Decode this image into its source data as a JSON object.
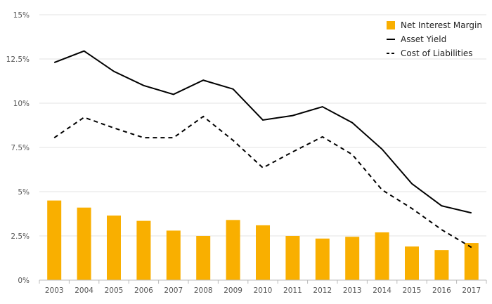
{
  "chart_data": {
    "type": "bar+line",
    "title": "",
    "xlabel": "",
    "ylabel": "",
    "ylim": [
      0,
      15
    ],
    "yticks": [
      0,
      2.5,
      5,
      7.5,
      10,
      12.5,
      15
    ],
    "ytick_labels": [
      "0%",
      "2.5%",
      "5%",
      "7.5%",
      "10%",
      "12.5%",
      "15%"
    ],
    "categories": [
      "2003",
      "2004",
      "2005",
      "2006",
      "2007",
      "2008",
      "2009",
      "2010",
      "2011",
      "2012",
      "2013",
      "2014",
      "2015",
      "2016",
      "2017"
    ],
    "grid": true,
    "legend_position": "top-right",
    "series": [
      {
        "name": "Net Interest Margin",
        "kind": "bar",
        "color": "#F9AF00",
        "values": [
          4.5,
          4.1,
          3.65,
          3.35,
          2.8,
          2.5,
          3.4,
          3.1,
          2.5,
          2.35,
          2.45,
          2.7,
          1.9,
          1.7,
          2.1
        ]
      },
      {
        "name": "Asset Yield",
        "kind": "line",
        "style": "solid",
        "color": "#000000",
        "values": [
          12.3,
          12.95,
          11.8,
          11.0,
          10.5,
          11.3,
          10.8,
          9.05,
          9.3,
          9.8,
          8.9,
          7.4,
          5.45,
          4.2,
          3.8
        ]
      },
      {
        "name": "Cost of Liabilities",
        "kind": "line",
        "style": "dashed",
        "color": "#000000",
        "values": [
          8.05,
          9.2,
          8.6,
          8.05,
          8.05,
          9.25,
          7.9,
          6.35,
          7.25,
          8.1,
          7.1,
          5.1,
          4.05,
          2.85,
          1.85
        ]
      }
    ]
  }
}
